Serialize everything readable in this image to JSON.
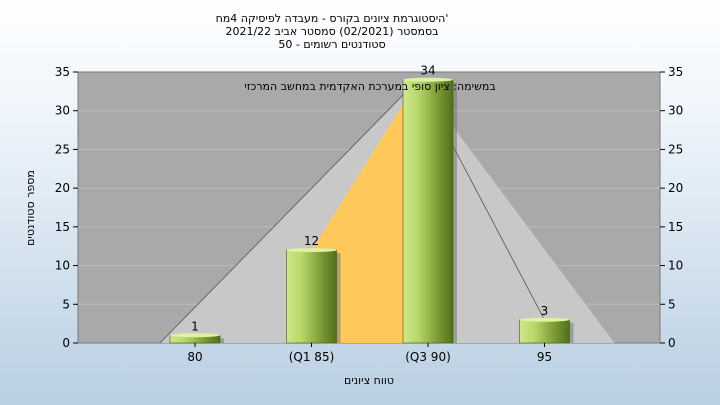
{
  "chart_data": {
    "type": "bar",
    "title_lines": [
      "היסטוגרמת ציונים בקורס - מעבדה לפיסיקה 4מח'",
      "בסמסטר  (02/2021)  סמסטר אביב 2021/22",
      "סטודנטים רשומים - 50"
    ],
    "annotation": "במשימה: ציון סופי במערכת האקדמית במחשב המרכזי",
    "categories": [
      "80",
      "(Q1 85)",
      "(Q3 90)",
      "95"
    ],
    "values": [
      1,
      12,
      34,
      3
    ],
    "data_labels": [
      "1",
      "12",
      "34",
      "3"
    ],
    "xlabel": "טווח ציונים",
    "ylabel": "מספר סטודנטים",
    "ylim": [
      0,
      35
    ],
    "yticks": [
      "0",
      "5",
      "10",
      "15",
      "20",
      "25",
      "30",
      "35"
    ],
    "grid": true,
    "colors": {
      "plot_bg": "#a9a9a9",
      "area_gray": "#c8c8c8",
      "area_orange": "#ffc85a",
      "bar_light": "#cfe88a",
      "bar_mid": "#9cc04a",
      "bar_dark": "#4f6f1e"
    }
  }
}
